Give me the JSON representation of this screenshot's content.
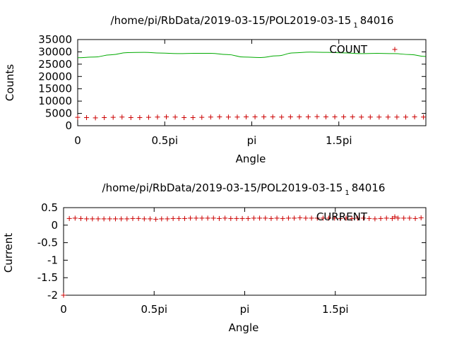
{
  "chart_data": [
    {
      "type": "scatter",
      "title_main": "/home/pi/RbData/2019-03-15/POL2019-03-15",
      "title_sub": "1",
      "title_tail": "84016",
      "xlabel": "Angle",
      "ylabel": "Counts",
      "xlim": [
        0,
        6.2832
      ],
      "ylim": [
        0,
        35000
      ],
      "x_ticks": [
        {
          "value": 0,
          "label": "0"
        },
        {
          "value": 1.5708,
          "label": "0.5pi"
        },
        {
          "value": 3.1416,
          "label": "pi"
        },
        {
          "value": 4.7124,
          "label": "1.5pi"
        }
      ],
      "y_ticks": [
        {
          "value": 0,
          "label": "0"
        },
        {
          "value": 5000,
          "label": "5000"
        },
        {
          "value": 10000,
          "label": "10000"
        },
        {
          "value": 15000,
          "label": "15000"
        },
        {
          "value": 20000,
          "label": "20000"
        },
        {
          "value": 25000,
          "label": "25000"
        },
        {
          "value": 30000,
          "label": "30000"
        },
        {
          "value": 35000,
          "label": "35000"
        }
      ],
      "legend_position": "top-right",
      "series": [
        {
          "name": "COUNT",
          "style": "points",
          "marker": "plus",
          "color": "#cc0000",
          "x": [
            0.0,
            0.16,
            0.32,
            0.48,
            0.64,
            0.8,
            0.96,
            1.12,
            1.28,
            1.44,
            1.6,
            1.76,
            1.92,
            2.08,
            2.24,
            2.4,
            2.56,
            2.72,
            2.88,
            3.04,
            3.2,
            3.36,
            3.52,
            3.68,
            3.84,
            4.0,
            4.16,
            4.32,
            4.48,
            4.64,
            4.8,
            4.96,
            5.12,
            5.28,
            5.44,
            5.6,
            5.76,
            5.92,
            6.08,
            6.24
          ],
          "y": [
            3400,
            3300,
            3200,
            3300,
            3400,
            3500,
            3300,
            3300,
            3400,
            3500,
            3600,
            3500,
            3300,
            3300,
            3400,
            3500,
            3600,
            3500,
            3500,
            3600,
            3600,
            3600,
            3600,
            3500,
            3600,
            3600,
            3600,
            3700,
            3600,
            3600,
            3600,
            3600,
            3500,
            3500,
            3500,
            3500,
            3500,
            3500,
            3600,
            3500
          ]
        },
        {
          "name": "",
          "style": "line",
          "color": "#00aa00",
          "x": [
            0.0,
            0.3,
            0.6,
            0.9,
            1.2,
            1.5,
            1.8,
            2.1,
            2.4,
            2.7,
            3.0,
            3.3,
            3.6,
            3.9,
            4.2,
            4.5,
            4.8,
            5.1,
            5.4,
            5.7,
            6.0,
            6.28
          ],
          "y": [
            27600,
            27900,
            28800,
            29700,
            29800,
            29500,
            29300,
            29400,
            29400,
            28900,
            27900,
            27700,
            28400,
            29600,
            29900,
            29800,
            29600,
            29300,
            29400,
            29300,
            28900,
            28100
          ]
        }
      ]
    },
    {
      "type": "scatter",
      "title_main": "/home/pi/RbData/2019-03-15/POL2019-03-15",
      "title_sub": "1",
      "title_tail": "84016",
      "xlabel": "Angle",
      "ylabel": "Current",
      "xlim": [
        0,
        6.2832
      ],
      "ylim": [
        -2,
        0.5
      ],
      "x_ticks": [
        {
          "value": 0,
          "label": "0"
        },
        {
          "value": 1.5708,
          "label": "0.5pi"
        },
        {
          "value": 3.1416,
          "label": "pi"
        },
        {
          "value": 4.7124,
          "label": "1.5pi"
        }
      ],
      "y_ticks": [
        {
          "value": -2,
          "label": "-2"
        },
        {
          "value": -1.5,
          "label": "-1.5"
        },
        {
          "value": -1,
          "label": "-1"
        },
        {
          "value": -0.5,
          "label": "-0.5"
        },
        {
          "value": 0,
          "label": "0"
        },
        {
          "value": 0.5,
          "label": "0.5"
        }
      ],
      "legend_position": "top-right",
      "series": [
        {
          "name": "CURRENT",
          "style": "points",
          "marker": "plus",
          "color": "#cc0000",
          "x": [
            0.0,
            0.1,
            0.2,
            0.3,
            0.4,
            0.5,
            0.6,
            0.7,
            0.8,
            0.9,
            1.0,
            1.1,
            1.2,
            1.3,
            1.4,
            1.5,
            1.6,
            1.7,
            1.8,
            1.9,
            2.0,
            2.1,
            2.2,
            2.3,
            2.4,
            2.5,
            2.6,
            2.7,
            2.8,
            2.9,
            3.0,
            3.1,
            3.2,
            3.3,
            3.4,
            3.5,
            3.6,
            3.7,
            3.8,
            3.9,
            4.0,
            4.1,
            4.2,
            4.3,
            4.4,
            4.5,
            4.6,
            4.7,
            4.8,
            4.9,
            5.0,
            5.1,
            5.2,
            5.3,
            5.4,
            5.5,
            5.6,
            5.7,
            5.8,
            5.9,
            6.0,
            6.1,
            6.2
          ],
          "y": [
            -2.0,
            0.19,
            0.2,
            0.19,
            0.18,
            0.18,
            0.18,
            0.18,
            0.18,
            0.18,
            0.18,
            0.18,
            0.19,
            0.19,
            0.18,
            0.18,
            0.17,
            0.18,
            0.18,
            0.19,
            0.19,
            0.19,
            0.2,
            0.2,
            0.2,
            0.2,
            0.2,
            0.19,
            0.2,
            0.19,
            0.19,
            0.19,
            0.19,
            0.2,
            0.2,
            0.2,
            0.19,
            0.2,
            0.19,
            0.2,
            0.2,
            0.21,
            0.2,
            0.2,
            0.2,
            0.2,
            0.2,
            0.2,
            0.19,
            0.2,
            0.19,
            0.2,
            0.2,
            0.19,
            0.18,
            0.19,
            0.2,
            0.19,
            0.2,
            0.2,
            0.2,
            0.19,
            0.21
          ]
        }
      ]
    }
  ]
}
